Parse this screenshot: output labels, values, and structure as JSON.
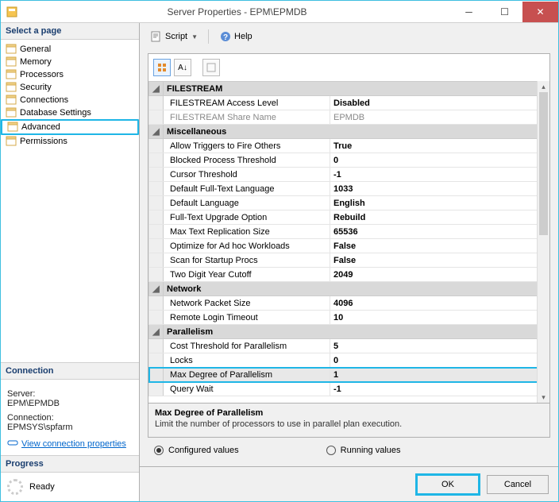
{
  "window": {
    "title": "Server Properties - EPM\\EPMDB"
  },
  "sidebar": {
    "header": "Select a page",
    "items": [
      {
        "label": "General",
        "hl": false
      },
      {
        "label": "Memory",
        "hl": false
      },
      {
        "label": "Processors",
        "hl": false
      },
      {
        "label": "Security",
        "hl": false
      },
      {
        "label": "Connections",
        "hl": false
      },
      {
        "label": "Database Settings",
        "hl": false
      },
      {
        "label": "Advanced",
        "hl": true
      },
      {
        "label": "Permissions",
        "hl": false
      }
    ]
  },
  "connection": {
    "header": "Connection",
    "server_label": "Server:",
    "server_value": "EPM\\EPMDB",
    "conn_label": "Connection:",
    "conn_value": "EPMSYS\\spfarm",
    "link": "View connection properties"
  },
  "progress": {
    "header": "Progress",
    "status": "Ready"
  },
  "toolbar": {
    "script": "Script",
    "help": "Help"
  },
  "grid": {
    "categories": [
      {
        "name": "FILESTREAM",
        "rows": [
          {
            "n": "FILESTREAM Access Level",
            "v": "Disabled",
            "dis": false,
            "hl": false
          },
          {
            "n": "FILESTREAM Share Name",
            "v": "EPMDB",
            "dis": true,
            "hl": false
          }
        ]
      },
      {
        "name": "Miscellaneous",
        "rows": [
          {
            "n": "Allow Triggers to Fire Others",
            "v": "True",
            "dis": false,
            "hl": false
          },
          {
            "n": "Blocked Process Threshold",
            "v": "0",
            "dis": false,
            "hl": false
          },
          {
            "n": "Cursor Threshold",
            "v": "-1",
            "dis": false,
            "hl": false
          },
          {
            "n": "Default Full-Text Language",
            "v": "1033",
            "dis": false,
            "hl": false
          },
          {
            "n": "Default Language",
            "v": "English",
            "dis": false,
            "hl": false
          },
          {
            "n": "Full-Text Upgrade Option",
            "v": "Rebuild",
            "dis": false,
            "hl": false
          },
          {
            "n": "Max Text Replication Size",
            "v": "65536",
            "dis": false,
            "hl": false
          },
          {
            "n": "Optimize for Ad hoc Workloads",
            "v": "False",
            "dis": false,
            "hl": false
          },
          {
            "n": "Scan for Startup Procs",
            "v": "False",
            "dis": false,
            "hl": false
          },
          {
            "n": "Two Digit Year Cutoff",
            "v": "2049",
            "dis": false,
            "hl": false
          }
        ]
      },
      {
        "name": "Network",
        "rows": [
          {
            "n": "Network Packet Size",
            "v": "4096",
            "dis": false,
            "hl": false
          },
          {
            "n": "Remote Login Timeout",
            "v": "10",
            "dis": false,
            "hl": false
          }
        ]
      },
      {
        "name": "Parallelism",
        "rows": [
          {
            "n": "Cost Threshold for Parallelism",
            "v": "5",
            "dis": false,
            "hl": false
          },
          {
            "n": "Locks",
            "v": "0",
            "dis": false,
            "hl": false
          },
          {
            "n": "Max Degree of Parallelism",
            "v": "1",
            "dis": false,
            "hl": true
          },
          {
            "n": "Query Wait",
            "v": "-1",
            "dis": false,
            "hl": false
          }
        ]
      }
    ]
  },
  "description": {
    "title": "Max Degree of Parallelism",
    "text": "Limit the number of processors to use in parallel plan execution."
  },
  "radios": {
    "configured": "Configured values",
    "running": "Running values"
  },
  "buttons": {
    "ok": "OK",
    "cancel": "Cancel"
  },
  "colors": {
    "highlight": "#1fb6e6",
    "cat_bg": "#d9d9d9",
    "close": "#c75050"
  }
}
